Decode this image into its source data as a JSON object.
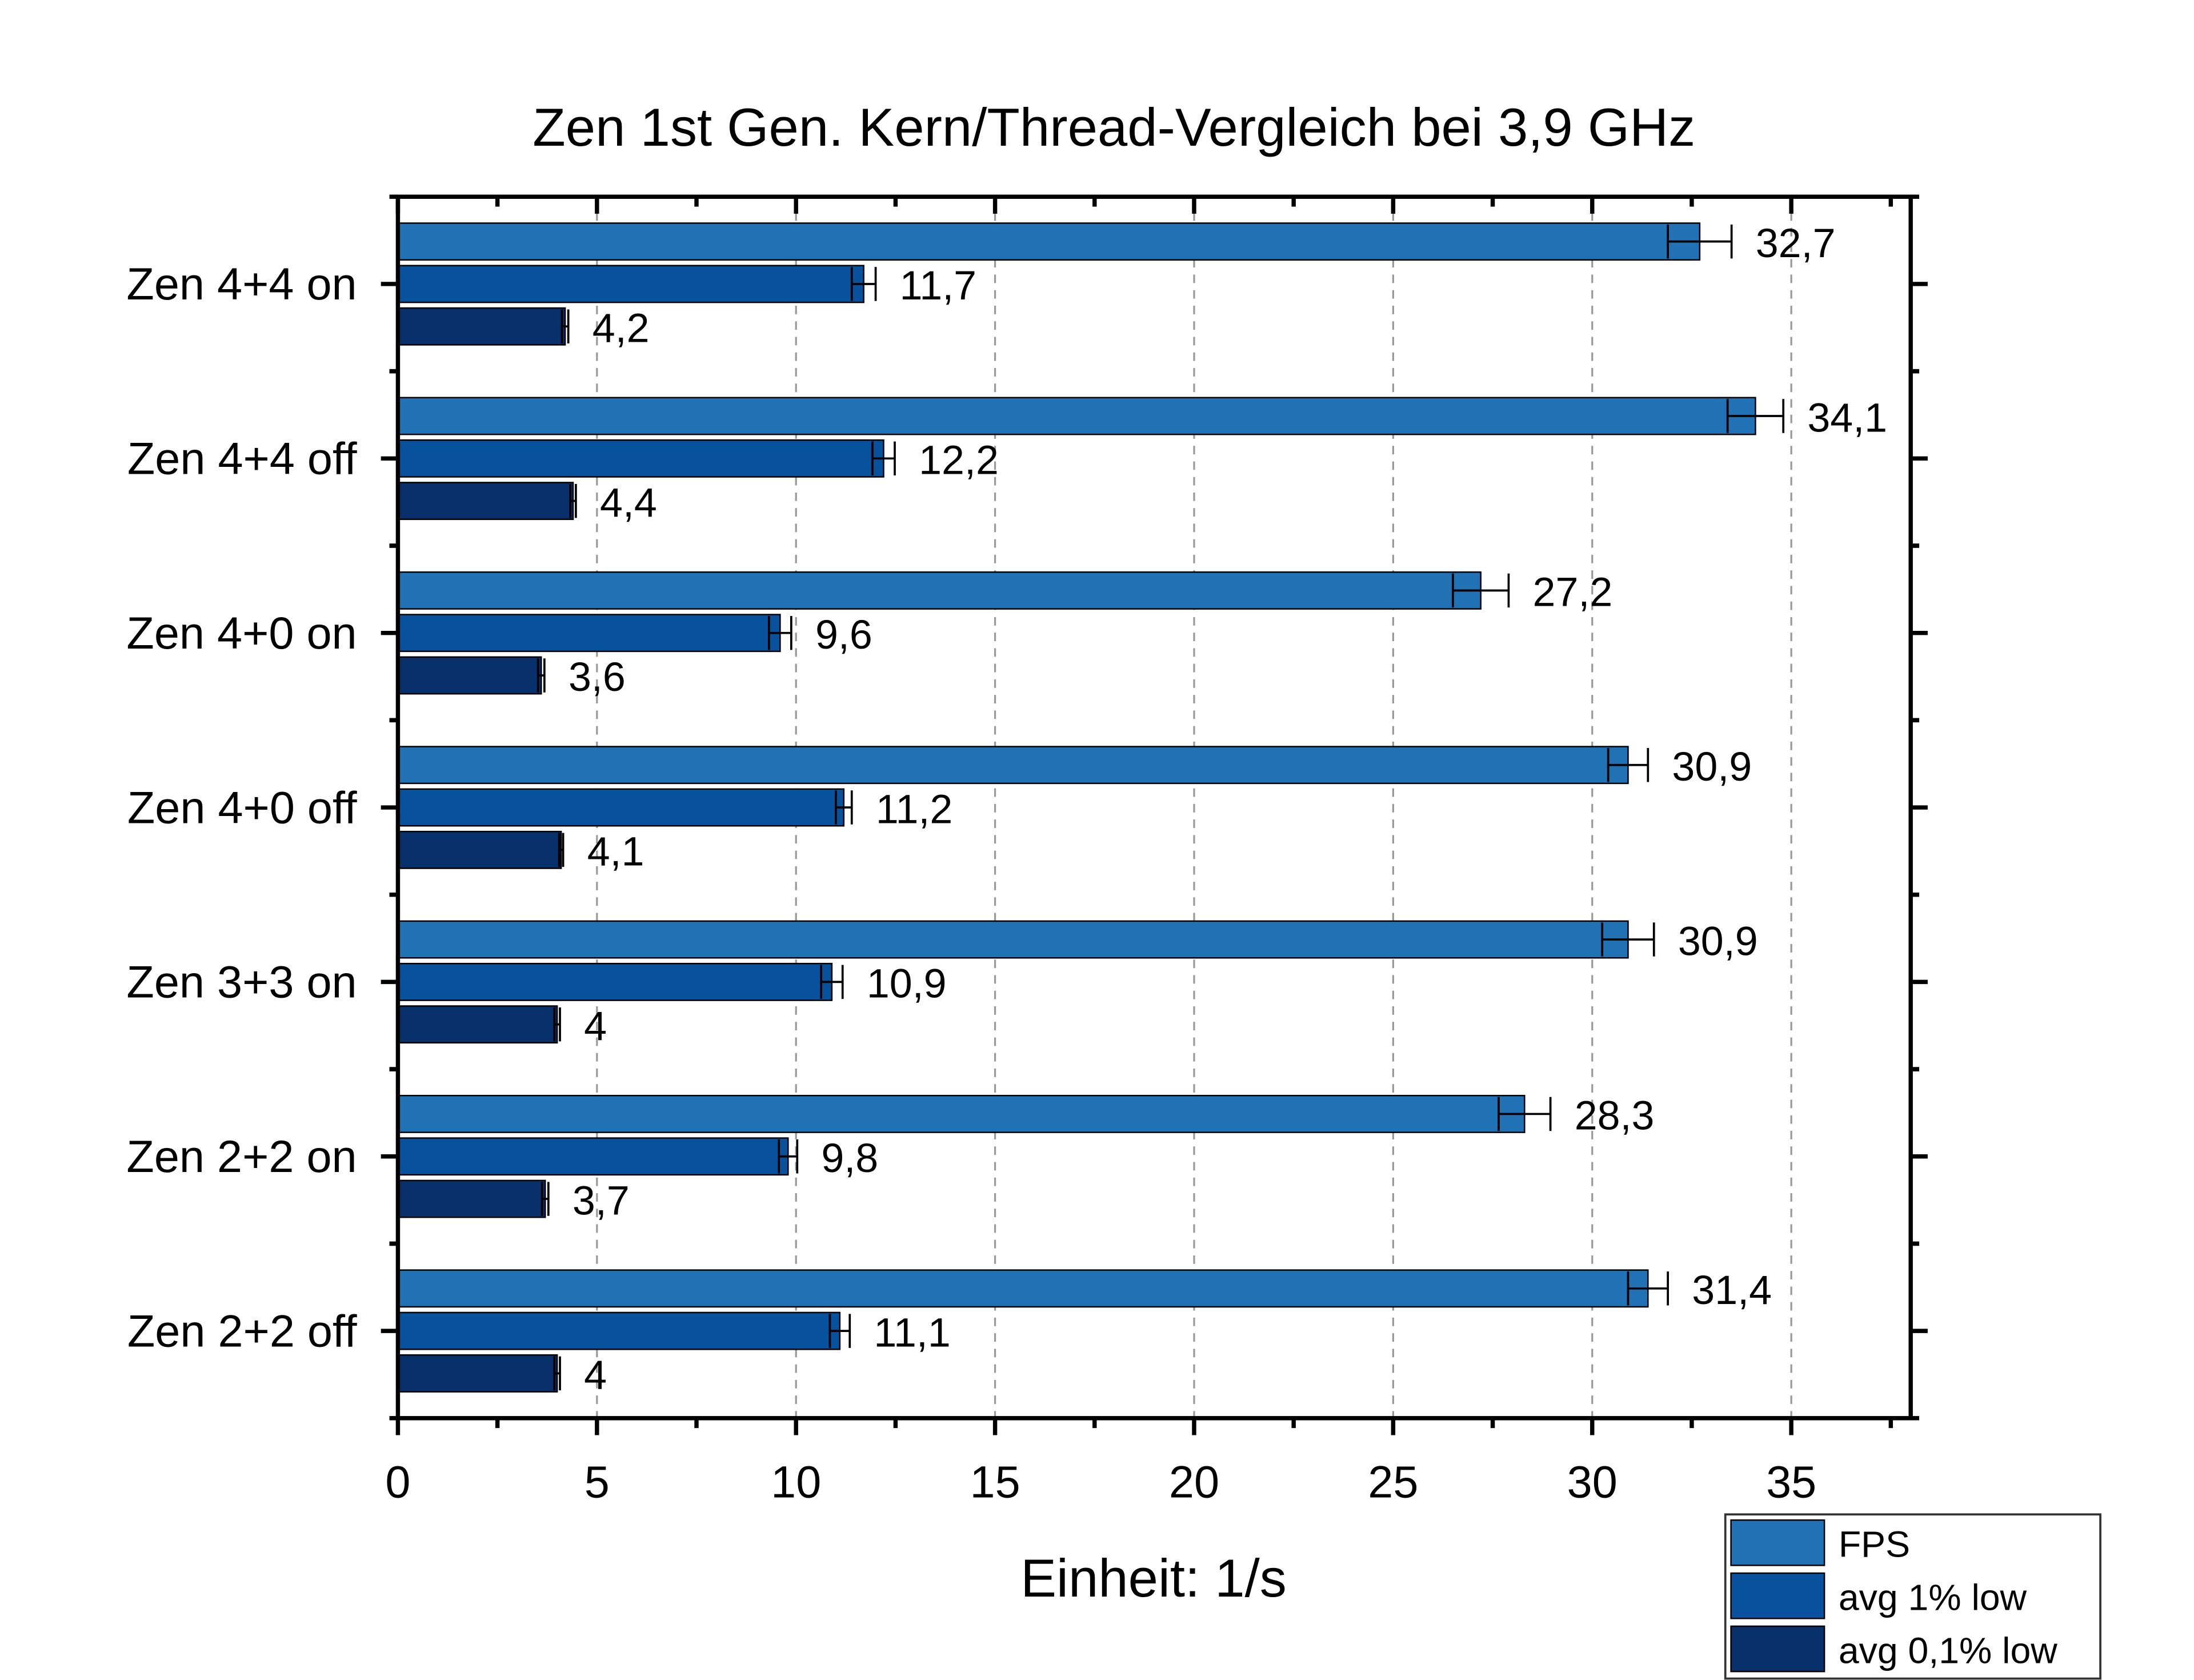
{
  "chart_data": {
    "type": "bar",
    "orientation": "horizontal",
    "title": "Zen 1st Gen. Kern/Thread-Vergleich bei 3,9 GHz",
    "xlabel": "Einheit: 1/s",
    "ylabel": "",
    "xlim": [
      0,
      38
    ],
    "xticks": [
      "0",
      "5",
      "10",
      "15",
      "20",
      "25",
      "30",
      "35"
    ],
    "grid": "vertical dashed",
    "legend_position": "bottom-right",
    "categories": [
      "Zen 4+4 on",
      "Zen 4+4 off",
      "Zen 4+0 on",
      "Zen 4+0 off",
      "Zen 3+3 on",
      "Zen 2+2 on",
      "Zen 2+2 off"
    ],
    "series": [
      {
        "name": "FPS",
        "color": "#2171b5",
        "values": [
          32.7,
          34.1,
          27.2,
          30.9,
          30.9,
          28.3,
          31.4
        ],
        "labels": [
          "32,7",
          "34,1",
          "27,2",
          "30,9",
          "30,9",
          "28,3",
          "31,4"
        ],
        "errors": [
          0.8,
          0.7,
          0.7,
          0.5,
          0.65,
          0.65,
          0.5
        ]
      },
      {
        "name": "avg 1% low",
        "color": "#08519c",
        "values": [
          11.7,
          12.2,
          9.6,
          11.2,
          10.9,
          9.8,
          11.1
        ],
        "labels": [
          "11,7",
          "12,2",
          "9,6",
          "11,2",
          "10,9",
          "9,8",
          "11,1"
        ],
        "errors": [
          0.3,
          0.28,
          0.28,
          0.2,
          0.27,
          0.23,
          0.25
        ]
      },
      {
        "name": "avg 0,1% low",
        "color": "#08306b",
        "values": [
          4.2,
          4.4,
          3.6,
          4.1,
          4.0,
          3.7,
          4.0
        ],
        "labels": [
          "4,2",
          "4,4",
          "3,6",
          "4,1",
          "4",
          "3,7",
          "4"
        ],
        "errors": [
          0.08,
          0.07,
          0.08,
          0.05,
          0.07,
          0.08,
          0.07
        ]
      }
    ]
  }
}
